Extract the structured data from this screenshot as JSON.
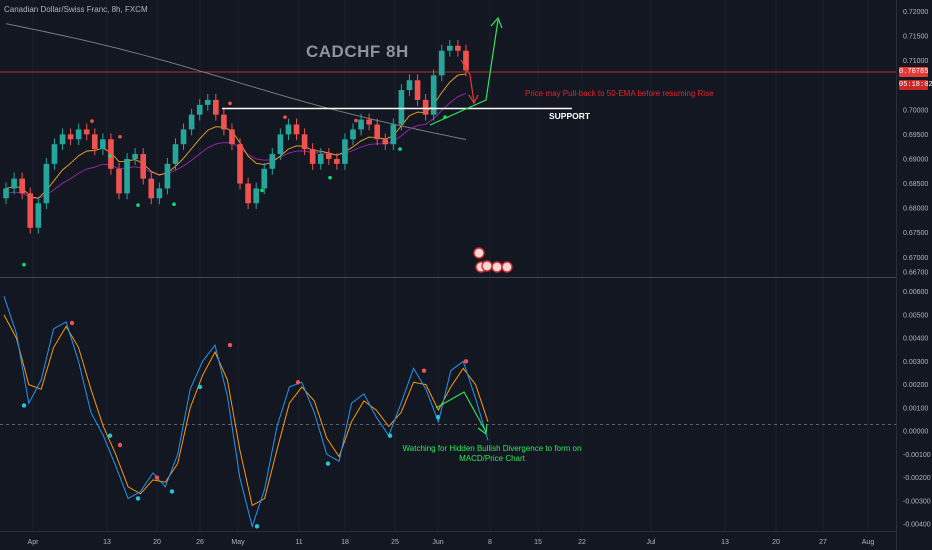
{
  "header": {
    "symbol_title": "Canadian Dollar/Swiss Franc, 8h, FXCM",
    "watermark": "CADCHF 8H"
  },
  "price_axis": {
    "ticks": [
      "0.72000",
      "0.71500",
      "0.71000",
      "0.70785",
      "05:18:02",
      "0.70000",
      "0.69500",
      "0.69000",
      "0.68500",
      "0.68000",
      "0.67500",
      "0.67000",
      "0.66700"
    ],
    "current_price": "0.70785",
    "countdown": "05:18:02"
  },
  "macd_axis": {
    "ticks": [
      "0.00600",
      "0.00500",
      "0.00400",
      "0.00300",
      "0.00200",
      "0.00100",
      "0.00000",
      "-0.00100",
      "-0.00200",
      "-0.00300",
      "-0.00400"
    ]
  },
  "time_axis": {
    "ticks": [
      "Apr",
      "13",
      "20",
      "26",
      "May",
      "11",
      "18",
      "25",
      "Jun",
      "8",
      "15",
      "22",
      "Jul",
      "13",
      "20",
      "27",
      "Aug"
    ]
  },
  "annotations": {
    "pullback_note": "Price may Pull-back to 50-EMA before resuming Rise",
    "support_label": "SUPPORT",
    "divergence_note": "Watching for Hidden Bullish Divergence to form on MACD/Price Chart"
  },
  "colors": {
    "background": "#131722",
    "bull_candle": "#26a69a",
    "bear_candle": "#ef5350",
    "ema_orange": "#f5a623",
    "ema_purple": "#9c27b0",
    "sma_gray": "#9e9e9e",
    "macd_line": "#2196f3",
    "signal_line": "#ff9800",
    "annotation_red": "#e2262c",
    "annotation_green": "#2ee85c",
    "support_line": "#ffffff"
  },
  "chart_data": [
    {
      "type": "candlestick",
      "title": "CADCHF 8H",
      "ylim": [
        0.666,
        0.7215
      ],
      "x": [
        "Apr",
        "13",
        "20",
        "26",
        "May",
        "11",
        "18",
        "25",
        "Jun",
        "8",
        "15",
        "22",
        "Jul",
        "13",
        "20",
        "27",
        "Aug"
      ],
      "ohlc_close_path": [
        0.684,
        0.686,
        0.683,
        0.676,
        0.681,
        0.689,
        0.693,
        0.695,
        0.694,
        0.696,
        0.695,
        0.692,
        0.694,
        0.688,
        0.683,
        0.69,
        0.691,
        0.686,
        0.682,
        0.684,
        0.689,
        0.693,
        0.696,
        0.699,
        0.701,
        0.702,
        0.699,
        0.696,
        0.693,
        0.685,
        0.681,
        0.684,
        0.688,
        0.691,
        0.695,
        0.697,
        0.695,
        0.692,
        0.689,
        0.691,
        0.69,
        0.689,
        0.694,
        0.696,
        0.698,
        0.697,
        0.694,
        0.693,
        0.697,
        0.704,
        0.706,
        0.702,
        0.699,
        0.707,
        0.712,
        0.713,
        0.712,
        0.708
      ],
      "support_level": 0.7005,
      "emas": [
        "EMA 50 (orange)",
        "EMA 100 (purple)",
        "SMA 200 (gray)"
      ]
    },
    {
      "type": "line",
      "title": "MACD",
      "ylim": [
        -0.0043,
        0.0065
      ],
      "series": [
        {
          "values": [
            0.0058,
            0.0042,
            0.0012,
            0.0022,
            0.0044,
            0.0047,
            0.003,
            0.0008,
            -0.0002,
            -0.0015,
            -0.0029,
            -0.0026,
            -0.0018,
            -0.0024,
            -0.001,
            0.0018,
            0.003,
            0.0037,
            0.0015,
            -0.002,
            -0.0041,
            -0.0025,
            0.0002,
            0.0019,
            0.0021,
            0.0008,
            -0.001,
            -0.0013,
            0.0012,
            0.0016,
            0.0006,
            -0.0002,
            0.0012,
            0.0027,
            0.0018,
            0.0004,
            0.0026,
            0.003,
            0.0014,
            -0.0004
          ]
        },
        {
          "values": [
            0.005,
            0.004,
            0.002,
            0.0018,
            0.0036,
            0.0045,
            0.0036,
            0.0018,
            0.0002,
            -0.001,
            -0.0024,
            -0.0027,
            -0.0021,
            -0.0022,
            -0.0014,
            0.001,
            0.0024,
            0.0034,
            0.0022,
            -0.0008,
            -0.0032,
            -0.0029,
            -0.0008,
            0.0012,
            0.0019,
            0.0013,
            -0.0003,
            -0.0011,
            0.0004,
            0.0013,
            0.0009,
            0.0002,
            0.0008,
            0.0021,
            0.002,
            0.0009,
            0.0019,
            0.0027,
            0.002,
            0.0004
          ]
        }
      ]
    }
  ]
}
